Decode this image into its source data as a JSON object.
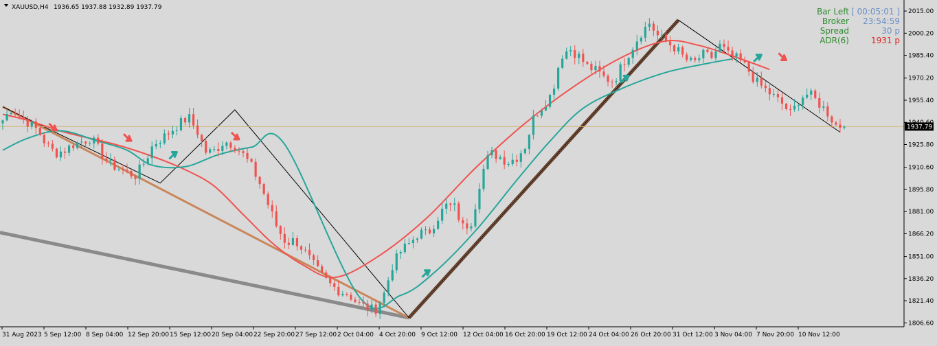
{
  "header": {
    "symbol": "XAUUSD,H4",
    "ohlc": "1936.65 1937.88 1932.89 1937.79"
  },
  "info_panel": [
    {
      "label": "Bar Left",
      "value": "[ 00:05:01 ]",
      "color": "#6a8fc6"
    },
    {
      "label": "Broker",
      "value": "23:54:59",
      "color": "#6a8fc6"
    },
    {
      "label": "Spread",
      "value": "30 p",
      "color": "#6a8fc6"
    },
    {
      "label": "ADR(6)",
      "value": "1931 p",
      "color": "#e02020"
    }
  ],
  "colors": {
    "background": "#d9d9d9",
    "bull": "#26a69a",
    "bear": "#ef5350",
    "ma_fast": "#26a69a",
    "ma_slow": "#ef5350",
    "trend_thick": "#8a8a8a",
    "trend_brown": "#c9865a",
    "current_price_line": "#d4b87a"
  },
  "chart_data": {
    "type": "candlestick",
    "symbol": "XAUUSD",
    "timeframe": "H4",
    "ylim": [
      1804,
      2021
    ],
    "current_price": 1937.79,
    "y_ticks": [
      2015.0,
      2000.2,
      1985.4,
      1970.2,
      1955.4,
      1940.6,
      1925.8,
      1910.6,
      1895.8,
      1881.0,
      1866.2,
      1851.0,
      1836.2,
      1821.4,
      1806.6
    ],
    "x_labels": [
      "31 Aug 2023",
      "5 Sep 12:00",
      "8 Sep 04:00",
      "12 Sep 20:00",
      "15 Sep 12:00",
      "20 Sep 04:00",
      "22 Sep 20:00",
      "27 Sep 12:00",
      "2 Oct 04:00",
      "4 Oct 20:00",
      "9 Oct 12:00",
      "12 Oct 04:00",
      "16 Oct 20:00",
      "19 Oct 12:00",
      "24 Oct 04:00",
      "26 Oct 20:00",
      "31 Oct 12:00",
      "3 Nov 04:00",
      "7 Nov 20:00",
      "10 Nov 12:00"
    ],
    "price_path": [
      1942,
      1950,
      1944,
      1940,
      1935,
      1925,
      1920,
      1922,
      1926,
      1928,
      1930,
      1921,
      1913,
      1910,
      1907,
      1905,
      1914,
      1926,
      1930,
      1935,
      1940,
      1944,
      1934,
      1920,
      1922,
      1928,
      1926,
      1920,
      1912,
      1900,
      1885,
      1870,
      1860,
      1862,
      1855,
      1846,
      1838,
      1832,
      1828,
      1826,
      1820,
      1817,
      1815,
      1825,
      1845,
      1855,
      1860,
      1867,
      1866,
      1876,
      1885,
      1884,
      1870,
      1875,
      1905,
      1920,
      1918,
      1914,
      1917,
      1925,
      1945,
      1952,
      1960,
      1985,
      1990,
      1985,
      1978,
      1975,
      1970,
      1968,
      1980,
      1990,
      2000,
      2007,
      1998,
      1994,
      1990,
      1983,
      1980,
      1986,
      1984,
      1992,
      1985,
      1983,
      1977,
      1968,
      1963,
      1958,
      1953,
      1946,
      1957,
      1960,
      1954,
      1948,
      1939,
      1937.79
    ],
    "ma_slow": [
      [
        0,
        1946
      ],
      [
        6,
        1942
      ],
      [
        15,
        1934
      ],
      [
        27,
        1926
      ],
      [
        36,
        1918
      ],
      [
        44,
        1909
      ],
      [
        51,
        1898
      ],
      [
        58,
        1879
      ],
      [
        65,
        1860
      ],
      [
        72,
        1846
      ],
      [
        80,
        1837
      ],
      [
        90,
        1850
      ],
      [
        102,
        1876
      ],
      [
        114,
        1910
      ],
      [
        126,
        1940
      ],
      [
        138,
        1965
      ],
      [
        150,
        1985
      ],
      [
        160,
        1995
      ],
      [
        168,
        1992
      ],
      [
        176,
        1985
      ],
      [
        185,
        1976
      ]
    ],
    "ma_fast": [
      [
        0,
        1922
      ],
      [
        6,
        1930
      ],
      [
        14,
        1935
      ],
      [
        23,
        1928
      ],
      [
        30,
        1922
      ],
      [
        36,
        1912
      ],
      [
        44,
        1911
      ],
      [
        52,
        1919
      ],
      [
        60,
        1924
      ],
      [
        68,
        1926
      ],
      [
        86,
        1824
      ],
      [
        96,
        1825
      ],
      [
        104,
        1840
      ],
      [
        114,
        1868
      ],
      [
        124,
        1902
      ],
      [
        132,
        1928
      ],
      [
        140,
        1950
      ],
      [
        150,
        1964
      ],
      [
        160,
        1974
      ],
      [
        170,
        1980
      ],
      [
        176,
        1983
      ]
    ],
    "zigzag": [
      [
        0,
        1951
      ],
      [
        38,
        1900
      ],
      [
        56,
        1949
      ],
      [
        98,
        1810
      ],
      [
        163,
        2009
      ],
      [
        202,
        1934
      ]
    ],
    "trendlines": [
      {
        "style": "thick-gray",
        "from": [
          0,
          1867
        ],
        "to": [
          98,
          1810
        ]
      },
      {
        "style": "brown",
        "from": [
          0,
          1951
        ],
        "to": [
          98,
          1810
        ]
      },
      {
        "style": "brown-double",
        "from": [
          98,
          1810
        ],
        "to": [
          163,
          2009
        ]
      }
    ],
    "signals": [
      {
        "i": 12,
        "dir": "down",
        "price": 1938
      },
      {
        "i": 30,
        "dir": "down",
        "price": 1931
      },
      {
        "i": 41,
        "dir": "up",
        "price": 1918
      },
      {
        "i": 56,
        "dir": "down",
        "price": 1932
      },
      {
        "i": 102,
        "dir": "up",
        "price": 1839
      },
      {
        "i": 150,
        "dir": "up",
        "price": 1969
      },
      {
        "i": 182,
        "dir": "up",
        "price": 1983
      },
      {
        "i": 188,
        "dir": "down",
        "price": 1985
      }
    ]
  }
}
